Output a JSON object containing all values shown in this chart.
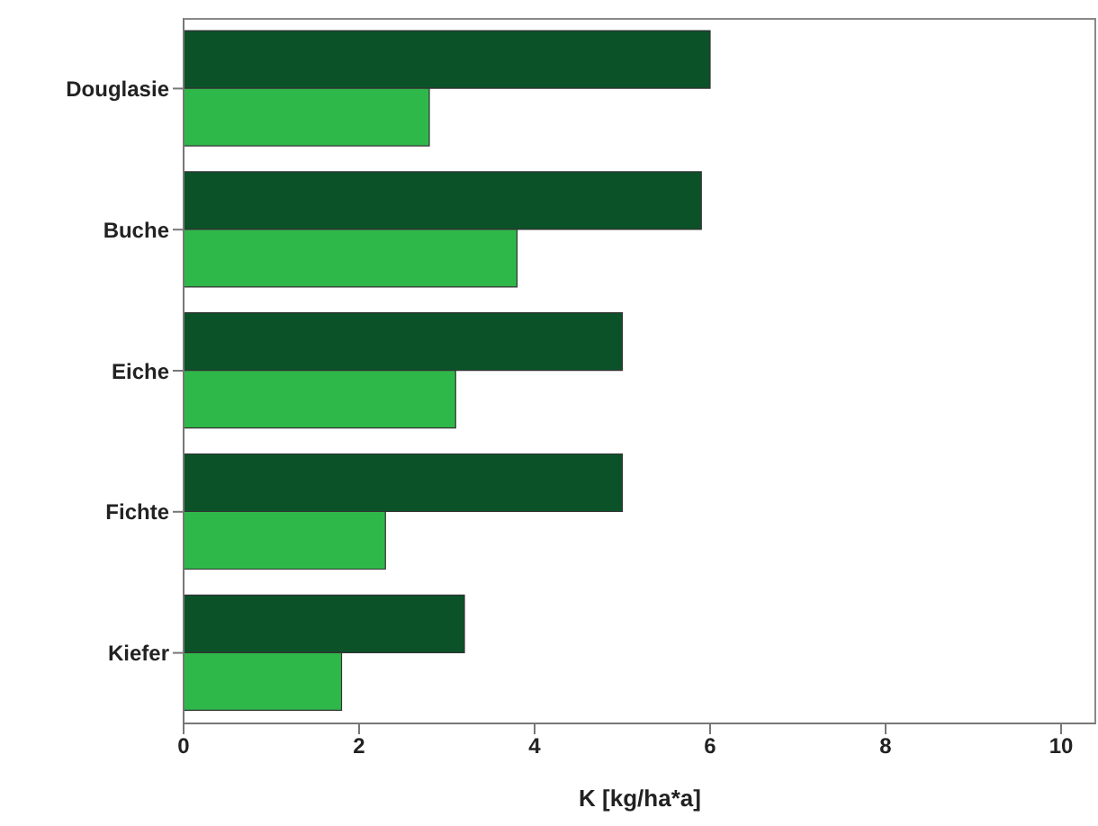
{
  "chart_data": {
    "type": "bar",
    "orientation": "horizontal",
    "xlabel": "K [kg/ha*a]",
    "categories": [
      "Douglasie",
      "Buche",
      "Eiche",
      "Fichte",
      "Kiefer"
    ],
    "series": [
      {
        "color": "#0b5229",
        "values": [
          6.0,
          5.9,
          5.0,
          5.0,
          3.2
        ]
      },
      {
        "color": "#2fb84a",
        "values": [
          2.8,
          3.8,
          3.1,
          2.3,
          1.8
        ]
      }
    ],
    "xlim": [
      0,
      10.4
    ],
    "xticks": [
      0,
      2,
      4,
      6,
      8,
      10
    ]
  }
}
